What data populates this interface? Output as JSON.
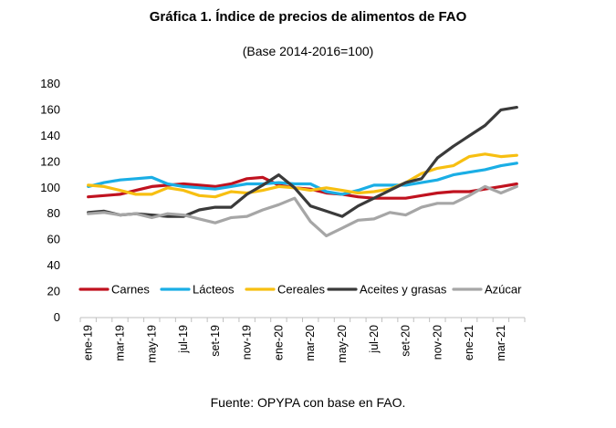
{
  "title": "Gráfica 1. Índice de precios de alimentos de FAO",
  "subtitle": "(Base 2014-2016=100)",
  "source": "Fuente: OPYPA con base en FAO.",
  "colors": {
    "carnes": "#c0121f",
    "lacteos": "#1aaee5",
    "cereales": "#f7bf11",
    "aceites": "#3a3a3a",
    "azucar": "#a6a6a6",
    "axis": "#bfbfbf"
  },
  "chart_data": {
    "type": "line",
    "title": "Gráfica 1. Índice de precios de alimentos de FAO",
    "subtitle": "(Base 2014-2016=100)",
    "xlabel": "",
    "ylabel": "",
    "ylim": [
      0,
      180
    ],
    "yticks": [
      0,
      20,
      40,
      60,
      80,
      100,
      120,
      140,
      160,
      180
    ],
    "grid": false,
    "legend": "inside-middle",
    "x": [
      "ene-19",
      "feb-19",
      "mar-19",
      "abr-19",
      "may-19",
      "jun-19",
      "jul-19",
      "ago-19",
      "set-19",
      "oct-19",
      "nov-19",
      "dic-19",
      "ene-20",
      "feb-20",
      "mar-20",
      "abr-20",
      "may-20",
      "jun-20",
      "jul-20",
      "ago-20",
      "set-20",
      "oct-20",
      "nov-20",
      "dic-20",
      "ene-21",
      "feb-21",
      "mar-21",
      "abr-21"
    ],
    "xtick_labels": [
      "ene-19",
      "mar-19",
      "may-19",
      "jul-19",
      "set-19",
      "nov-19",
      "ene-20",
      "mar-20",
      "may-20",
      "jul-20",
      "set-20",
      "nov-20",
      "ene-21",
      "mar-21"
    ],
    "series": [
      {
        "name": "Carnes",
        "color_key": "carnes",
        "values": [
          93,
          94,
          95,
          98,
          101,
          102,
          103,
          102,
          101,
          103,
          107,
          108,
          102,
          100,
          99,
          96,
          95,
          93,
          92,
          92,
          92,
          94,
          96,
          97,
          97,
          99,
          101,
          103
        ]
      },
      {
        "name": "Lácteos",
        "color_key": "lacteos",
        "values": [
          101,
          104,
          106,
          107,
          108,
          103,
          101,
          100,
          99,
          101,
          103,
          103,
          104,
          103,
          103,
          97,
          95,
          98,
          102,
          102,
          102,
          104,
          106,
          110,
          112,
          114,
          117,
          119
        ]
      },
      {
        "name": "Cereales",
        "color_key": "cereales",
        "values": [
          102,
          101,
          98,
          95,
          95,
          100,
          98,
          94,
          93,
          97,
          96,
          98,
          101,
          100,
          98,
          100,
          98,
          96,
          97,
          99,
          104,
          111,
          115,
          117,
          124,
          126,
          124,
          125
        ]
      },
      {
        "name": "Aceites y grasas",
        "color_key": "aceites",
        "values": [
          81,
          82,
          79,
          80,
          79,
          78,
          78,
          83,
          85,
          85,
          95,
          102,
          110,
          100,
          86,
          82,
          78,
          86,
          92,
          98,
          104,
          107,
          123,
          132,
          140,
          148,
          160,
          162
        ]
      },
      {
        "name": "Azúcar",
        "color_key": "azucar",
        "values": [
          80,
          81,
          79,
          80,
          77,
          80,
          79,
          76,
          73,
          77,
          78,
          83,
          87,
          92,
          74,
          63,
          69,
          75,
          76,
          81,
          79,
          85,
          88,
          88,
          94,
          101,
          96,
          101
        ]
      }
    ]
  }
}
